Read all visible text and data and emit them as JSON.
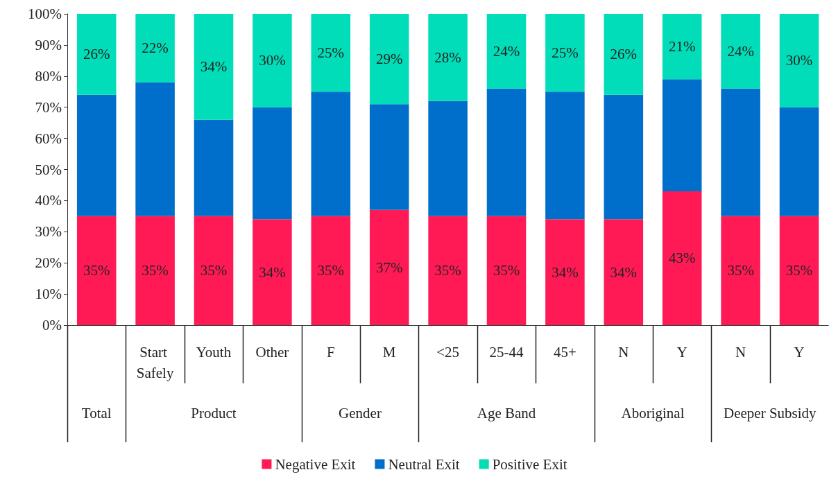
{
  "chart_data": {
    "type": "bar",
    "stacked": true,
    "categories": [
      null,
      "Start Safely",
      "Youth",
      "Other",
      "F",
      "M",
      "<25",
      "25-44",
      "45+",
      "N",
      "Y",
      "N",
      "Y"
    ],
    "series": [
      {
        "name": "Negative Exit",
        "color": "#ff1a55",
        "values": [
          35,
          35,
          35,
          34,
          35,
          37,
          35,
          35,
          34,
          34,
          43,
          35,
          35
        ],
        "value_labels": [
          "35%",
          "35%",
          "35%",
          "34%",
          "35%",
          "37%",
          "35%",
          "35%",
          "34%",
          "34%",
          "43%",
          "35%",
          "35%"
        ]
      },
      {
        "name": "Neutral Exit",
        "color": "#006fcc",
        "values": [
          39,
          43,
          31,
          36,
          40,
          34,
          37,
          41,
          41,
          40,
          36,
          41,
          35
        ],
        "value_labels": [
          null,
          null,
          null,
          null,
          null,
          null,
          null,
          null,
          null,
          null,
          null,
          null,
          null
        ]
      },
      {
        "name": "Positive Exit",
        "color": "#00ddb8",
        "values": [
          26,
          22,
          34,
          30,
          25,
          29,
          28,
          24,
          25,
          26,
          21,
          24,
          30
        ],
        "value_labels": [
          "26%",
          "22%",
          "34%",
          "30%",
          "25%",
          "29%",
          "28%",
          "24%",
          "25%",
          "26%",
          "21%",
          "24%",
          "30%"
        ]
      }
    ],
    "ylim": [
      0,
      100
    ],
    "yticks": [
      {
        "value": 0,
        "label": "0%"
      },
      {
        "value": 10,
        "label": "10%"
      },
      {
        "value": 20,
        "label": "20%"
      },
      {
        "value": 30,
        "label": "30%"
      },
      {
        "value": 40,
        "label": "40%"
      },
      {
        "value": 50,
        "label": "50%"
      },
      {
        "value": 60,
        "label": "60%"
      },
      {
        "value": 70,
        "label": "70%"
      },
      {
        "value": 80,
        "label": "80%"
      },
      {
        "value": 90,
        "label": "90%"
      },
      {
        "value": 100,
        "label": "100%"
      }
    ],
    "annotations": [
      "Total",
      "Product",
      "Gender",
      "Age Band",
      "Aboriginal",
      "Deeper Subsidy"
    ],
    "grid": false,
    "legend": "bottom"
  }
}
